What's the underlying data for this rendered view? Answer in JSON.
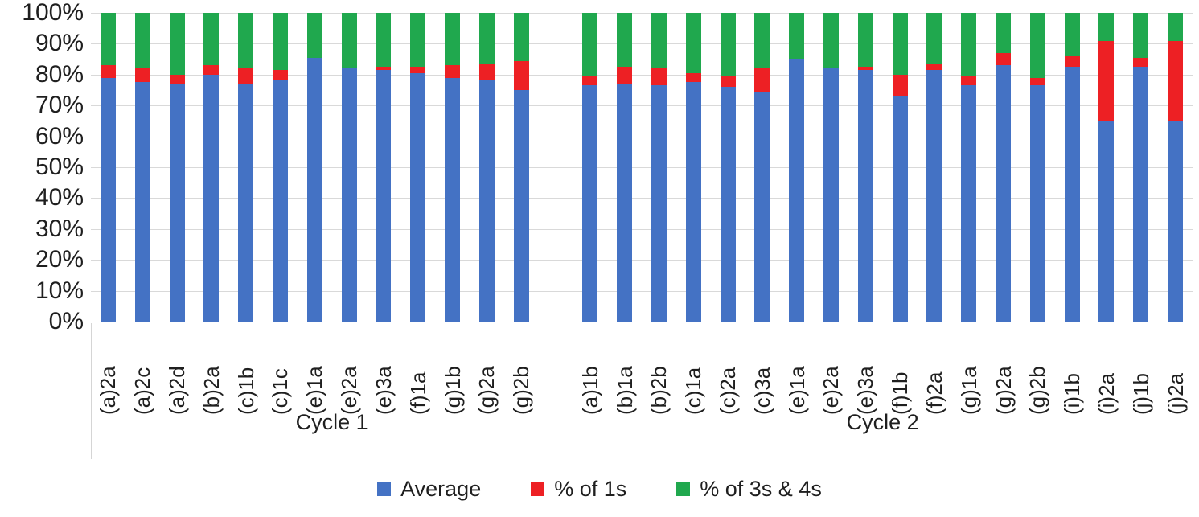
{
  "chart_data": {
    "type": "bar",
    "stacked": true,
    "orientation": "vertical",
    "grid": true,
    "legend_position": "bottom",
    "ylim": [
      0,
      100
    ],
    "y_ticks": [
      "0%",
      "10%",
      "20%",
      "30%",
      "40%",
      "50%",
      "60%",
      "70%",
      "80%",
      "90%",
      "100%"
    ],
    "series": [
      {
        "name": "Average",
        "color": "#4472c4"
      },
      {
        "name": "% of 1s",
        "color": "#ed2024"
      },
      {
        "name": "% of 3s & 4s",
        "color": "#20a84e"
      }
    ],
    "groups": [
      {
        "label": "Cycle 1",
        "bars": [
          {
            "category": "(a)2a",
            "average": 79,
            "pct_1s": 4,
            "pct_3s_4s": 17
          },
          {
            "category": "(a)2c",
            "average": 77.5,
            "pct_1s": 4.5,
            "pct_3s_4s": 18
          },
          {
            "category": "(a)2d",
            "average": 77,
            "pct_1s": 3,
            "pct_3s_4s": 20
          },
          {
            "category": "(b)2a",
            "average": 80,
            "pct_1s": 3,
            "pct_3s_4s": 17
          },
          {
            "category": "(c)1b",
            "average": 77,
            "pct_1s": 5,
            "pct_3s_4s": 18
          },
          {
            "category": "(c)1c",
            "average": 78,
            "pct_1s": 3.5,
            "pct_3s_4s": 18.5
          },
          {
            "category": "(e)1a",
            "average": 85.5,
            "pct_1s": 0,
            "pct_3s_4s": 14.5
          },
          {
            "category": "(e)2a",
            "average": 82,
            "pct_1s": 0,
            "pct_3s_4s": 18
          },
          {
            "category": "(e)3a",
            "average": 81.5,
            "pct_1s": 1,
            "pct_3s_4s": 17.5
          },
          {
            "category": "(f)1a",
            "average": 80.5,
            "pct_1s": 2,
            "pct_3s_4s": 17.5
          },
          {
            "category": "(g)1b",
            "average": 79,
            "pct_1s": 4,
            "pct_3s_4s": 17
          },
          {
            "category": "(g)2a",
            "average": 78.5,
            "pct_1s": 5,
            "pct_3s_4s": 16.5
          },
          {
            "category": "(g)2b",
            "average": 75,
            "pct_1s": 9.5,
            "pct_3s_4s": 15.5
          }
        ]
      },
      {
        "label": "Cycle 2",
        "bars": [
          {
            "category": "(a)1b",
            "average": 76.5,
            "pct_1s": 3,
            "pct_3s_4s": 20.5
          },
          {
            "category": "(b)1a",
            "average": 77,
            "pct_1s": 5.5,
            "pct_3s_4s": 17.5
          },
          {
            "category": "(b)2b",
            "average": 76.5,
            "pct_1s": 5.5,
            "pct_3s_4s": 18
          },
          {
            "category": "(c)1a",
            "average": 77.5,
            "pct_1s": 3,
            "pct_3s_4s": 19.5
          },
          {
            "category": "(c)2a",
            "average": 76,
            "pct_1s": 3.5,
            "pct_3s_4s": 20.5
          },
          {
            "category": "(c)3a",
            "average": 74.5,
            "pct_1s": 7.5,
            "pct_3s_4s": 18
          },
          {
            "category": "(e)1a",
            "average": 85,
            "pct_1s": 0,
            "pct_3s_4s": 15
          },
          {
            "category": "(e)2a",
            "average": 82,
            "pct_1s": 0,
            "pct_3s_4s": 18
          },
          {
            "category": "(e)3a",
            "average": 81.5,
            "pct_1s": 1,
            "pct_3s_4s": 17.5
          },
          {
            "category": "(f)1b",
            "average": 73,
            "pct_1s": 7,
            "pct_3s_4s": 20
          },
          {
            "category": "(f)2a",
            "average": 81.5,
            "pct_1s": 2,
            "pct_3s_4s": 16.5
          },
          {
            "category": "(g)1a",
            "average": 76.5,
            "pct_1s": 3,
            "pct_3s_4s": 20.5
          },
          {
            "category": "(g)2a",
            "average": 83,
            "pct_1s": 4,
            "pct_3s_4s": 13
          },
          {
            "category": "(g)2b",
            "average": 76.5,
            "pct_1s": 2.5,
            "pct_3s_4s": 21
          },
          {
            "category": "(i)1b",
            "average": 82.5,
            "pct_1s": 3.5,
            "pct_3s_4s": 14
          },
          {
            "category": "(i)2a",
            "average": 65,
            "pct_1s": 26,
            "pct_3s_4s": 9
          },
          {
            "category": "(j)1b",
            "average": 82.5,
            "pct_1s": 3,
            "pct_3s_4s": 14.5
          },
          {
            "category": "(j)2a",
            "average": 65,
            "pct_1s": 26,
            "pct_3s_4s": 9
          }
        ]
      }
    ],
    "colors": {
      "gridline": "#d9d9d9",
      "band_border": "#d5d5d5",
      "text": "#1f1f1f"
    }
  },
  "legend": {
    "items": [
      {
        "label": "Average",
        "color": "#4472c4"
      },
      {
        "label": "% of 1s",
        "color": "#ed2024"
      },
      {
        "label": "% of 3s & 4s",
        "color": "#20a84e"
      }
    ]
  }
}
